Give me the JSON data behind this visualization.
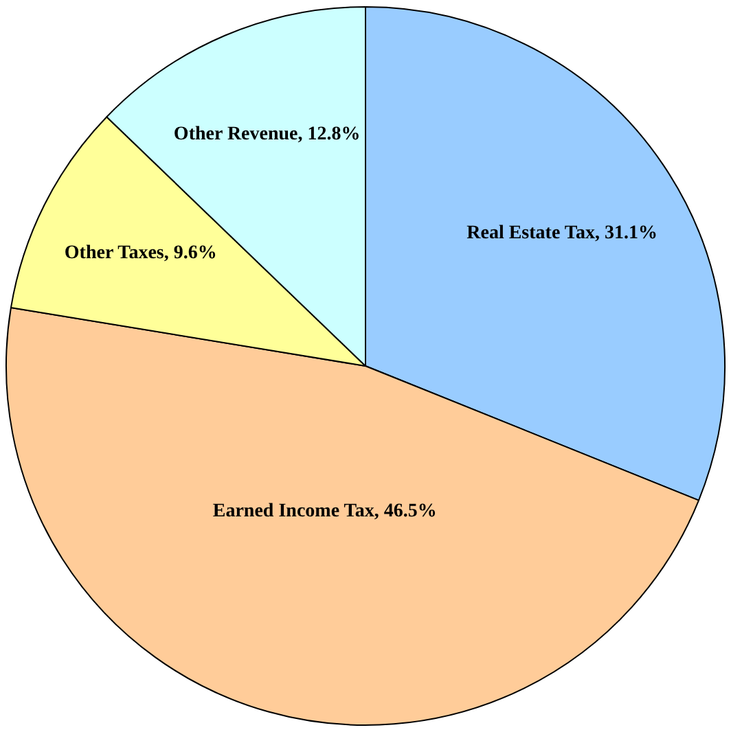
{
  "chart_data": {
    "type": "pie",
    "categories": [
      "Real Estate Tax",
      "Earned Income Tax",
      "Other Taxes",
      "Other Revenue"
    ],
    "values": [
      31.1,
      46.5,
      9.6,
      12.8
    ],
    "colors": [
      "#99ccff",
      "#ffcc99",
      "#ffff99",
      "#ccffff"
    ],
    "value_labels": [
      "31.1%",
      "46.5%",
      "9.6%",
      "12.8%"
    ],
    "legend": false
  }
}
